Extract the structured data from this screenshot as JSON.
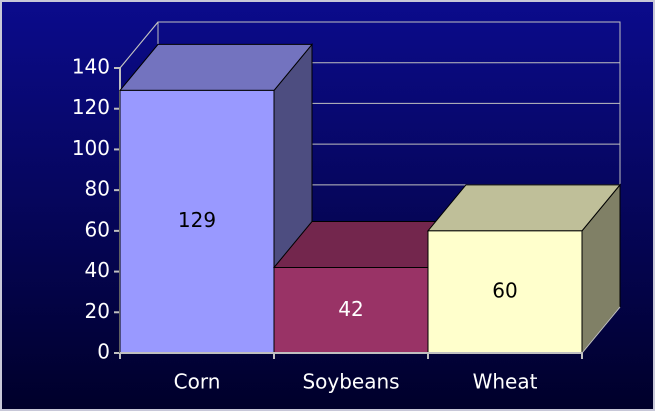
{
  "chart_data": {
    "type": "bar3d",
    "categories": [
      "Corn",
      "Soybeans",
      "Wheat"
    ],
    "values": [
      129,
      42,
      60
    ],
    "colors": [
      "#9999ff",
      "#993366",
      "#ffffcc"
    ],
    "ylim": [
      0,
      140
    ],
    "yticks": [
      0,
      20,
      40,
      60,
      80,
      100,
      120,
      140
    ],
    "grid": true
  }
}
